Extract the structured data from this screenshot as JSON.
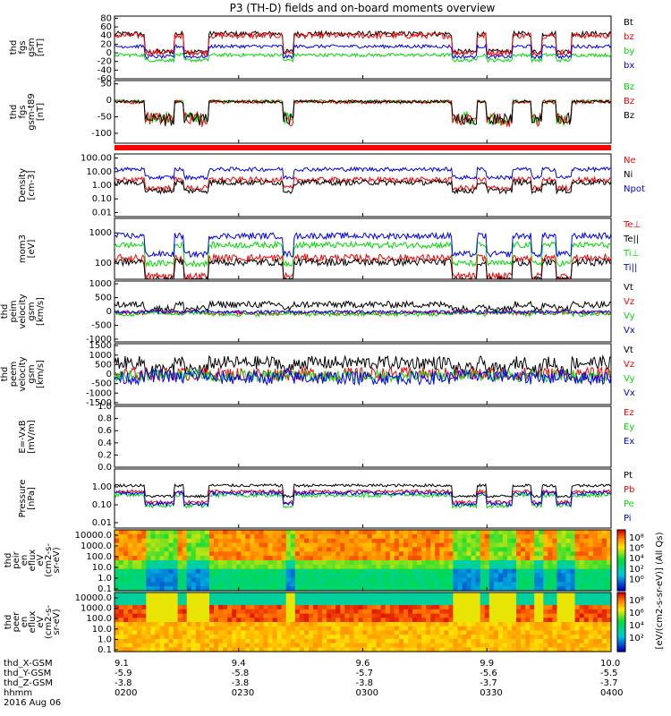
{
  "title": "P3 (TH-D) fields and on-board moments overview",
  "colors": {
    "black": "#000000",
    "red": "#ff0000",
    "green": "#00dd00",
    "blue": "#0000ff",
    "cyan": "#00c0c0"
  },
  "chart_data": {
    "type": "line",
    "x": [
      "0200",
      "0230",
      "0300",
      "0330",
      "0400"
    ],
    "x_range": [
      "0200",
      "0400"
    ],
    "date": "2016 Aug 06",
    "panels": [
      {
        "id": "fgs",
        "ylabel": [
          "thd",
          "fgs",
          "gsm",
          "[nT]"
        ],
        "yticks": [
          "80",
          "60",
          "40",
          "20",
          "0",
          "-20",
          "-40",
          "-60"
        ],
        "ylim": [
          -60,
          85
        ],
        "log": false,
        "series": [
          {
            "name": "Bt",
            "color": "black",
            "base": 44,
            "noise": 6
          },
          {
            "name": "bz",
            "color": "red",
            "base": 40,
            "noise": 7
          },
          {
            "name": "by",
            "color": "green",
            "base": -5,
            "noise": 4
          },
          {
            "name": "bx",
            "color": "blue",
            "base": 15,
            "noise": 4
          }
        ]
      },
      {
        "id": "fgsdiff",
        "ylabel": [
          "thd",
          "fgs",
          "gsm-t89",
          "[nT]"
        ],
        "yticks": [
          "50",
          "0",
          "-50",
          "-100"
        ],
        "ylim": [
          -130,
          60
        ],
        "log": false,
        "series": [
          {
            "name": "Bz",
            "color": "green",
            "base": -3,
            "noise": 5
          },
          {
            "name": "Bz",
            "color": "red",
            "base": -5,
            "noise": 6
          },
          {
            "name": "Bz",
            "color": "black",
            "base": -4,
            "noise": 4
          }
        ]
      },
      {
        "id": "density",
        "ylabel": [
          "Density",
          "[cm-3]"
        ],
        "yticks": [
          "100.00",
          "10.00",
          "1.00",
          "0.10",
          "0.01"
        ],
        "ylim": [
          0.005,
          200
        ],
        "log": true,
        "series": [
          {
            "name": "Ne",
            "color": "red",
            "base": 2.5,
            "noise": 0.2
          },
          {
            "name": "Ni",
            "color": "black",
            "base": 1.6,
            "noise": 0.2
          },
          {
            "name": "Npot",
            "color": "blue",
            "base": 15,
            "noise": 0.15
          }
        ]
      },
      {
        "id": "temp",
        "ylabel": [
          "mom3",
          "[eV]"
        ],
        "yticks": [
          "1000",
          "100"
        ],
        "ylim": [
          30,
          3000
        ],
        "log": true,
        "series": [
          {
            "name": "Te⊥",
            "color": "red",
            "base": 150,
            "noise": 0.12
          },
          {
            "name": "Te||",
            "color": "black",
            "base": 110,
            "noise": 0.12
          },
          {
            "name": "Ti⊥",
            "color": "green",
            "base": 400,
            "noise": 0.1
          },
          {
            "name": "Ti||",
            "color": "blue",
            "base": 800,
            "noise": 0.1
          }
        ]
      },
      {
        "id": "vi",
        "ylabel": [
          "thd",
          "peim",
          "velocity",
          "gsm",
          "[km/s]"
        ],
        "yticks": [
          "1000",
          "500",
          "0",
          "-500",
          "-1000"
        ],
        "ylim": [
          -1100,
          1100
        ],
        "log": false,
        "series": [
          {
            "name": "Vt",
            "color": "black",
            "base": 250,
            "noise": 120
          },
          {
            "name": "Vz",
            "color": "red",
            "base": -50,
            "noise": 80
          },
          {
            "name": "Vy",
            "color": "green",
            "base": -100,
            "noise": 80
          },
          {
            "name": "Vx",
            "color": "blue",
            "base": -20,
            "noise": 60
          }
        ]
      },
      {
        "id": "ve",
        "ylabel": [
          "thd",
          "peem",
          "velocity",
          "gsm",
          "[km/s]"
        ],
        "yticks": [
          "1500",
          "1000",
          "500",
          "0",
          "-500",
          "-1000",
          "-1500"
        ],
        "ylim": [
          -1600,
          1600
        ],
        "log": false,
        "series": [
          {
            "name": "Vt",
            "color": "black",
            "base": 600,
            "noise": 350
          },
          {
            "name": "Vz",
            "color": "red",
            "base": 0,
            "noise": 350
          },
          {
            "name": "Vy",
            "color": "green",
            "base": -100,
            "noise": 300
          },
          {
            "name": "Vx",
            "color": "blue",
            "base": -200,
            "noise": 350
          }
        ]
      },
      {
        "id": "efield",
        "ylabel": [
          "E=-VxB",
          "[mV/m]"
        ],
        "yticks": [
          "1.0",
          "0.8",
          "0.6",
          "0.4",
          "0.2",
          "0.0"
        ],
        "ylim": [
          0,
          1
        ],
        "log": false,
        "series": [
          {
            "name": "Ez",
            "color": "red",
            "base": null,
            "noise": 0
          },
          {
            "name": "Ey",
            "color": "green",
            "base": null,
            "noise": 0
          },
          {
            "name": "Ex",
            "color": "blue",
            "base": null,
            "noise": 0
          }
        ]
      },
      {
        "id": "pressure",
        "ylabel": [
          "Pressure",
          "[nPa]"
        ],
        "yticks": [
          "1.00",
          "0.10",
          "0.01"
        ],
        "ylim": [
          0.005,
          10
        ],
        "log": true,
        "series": [
          {
            "name": "Pt",
            "color": "black",
            "base": 1.2,
            "noise": 0.08
          },
          {
            "name": "Pb",
            "color": "red",
            "base": 0.55,
            "noise": 0.1
          },
          {
            "name": "Pe",
            "color": "green",
            "base": 0.35,
            "noise": 0.12
          },
          {
            "name": "Pi",
            "color": "blue",
            "base": 0.45,
            "noise": 0.12
          }
        ]
      }
    ],
    "spectrograms": [
      {
        "id": "peir",
        "ylabel": [
          "thd",
          "peir",
          "en",
          "eflux",
          "eV",
          "(cm2-s-",
          "sr-eV)"
        ],
        "yticks": [
          "10000.0",
          "1000.0",
          "100.0",
          "10.0",
          "1.0",
          "0.1"
        ]
      },
      {
        "id": "peer",
        "ylabel": [
          "thd",
          "peer",
          "en",
          "eflux",
          "eV",
          "(cm2-s-",
          "sr-eV)"
        ],
        "yticks": [
          "10000.0",
          "1000.0",
          "100.0",
          "10.0",
          "1.0",
          "0.1"
        ]
      }
    ],
    "colorbar": {
      "label": "[eV/(cm2-s-sr-eV)] (All Qs)",
      "ticks_top": [
        "10⁸",
        "10⁶",
        "10⁴",
        "10²",
        "10⁰"
      ],
      "ticks_bottom": [
        "10⁸",
        "10⁶",
        "10⁴",
        "10²"
      ]
    },
    "orbit_table": {
      "rows": [
        {
          "label": "thd_X-GSM",
          "values": [
            "9.1",
            "9.4",
            "9.6",
            "9.9",
            "10.0"
          ]
        },
        {
          "label": "thd_Y-GSM",
          "values": [
            "-5.9",
            "-5.8",
            "-5.7",
            "-5.6",
            "-5.5"
          ]
        },
        {
          "label": "thd_Z-GSM",
          "values": [
            "-3.8",
            "-3.8",
            "-3.8",
            "-3.7",
            "-3.7"
          ]
        },
        {
          "label": "hhmm",
          "values": [
            "0200",
            "0230",
            "0300",
            "0330",
            "0400"
          ]
        }
      ],
      "date": "2016 Aug 06"
    }
  }
}
